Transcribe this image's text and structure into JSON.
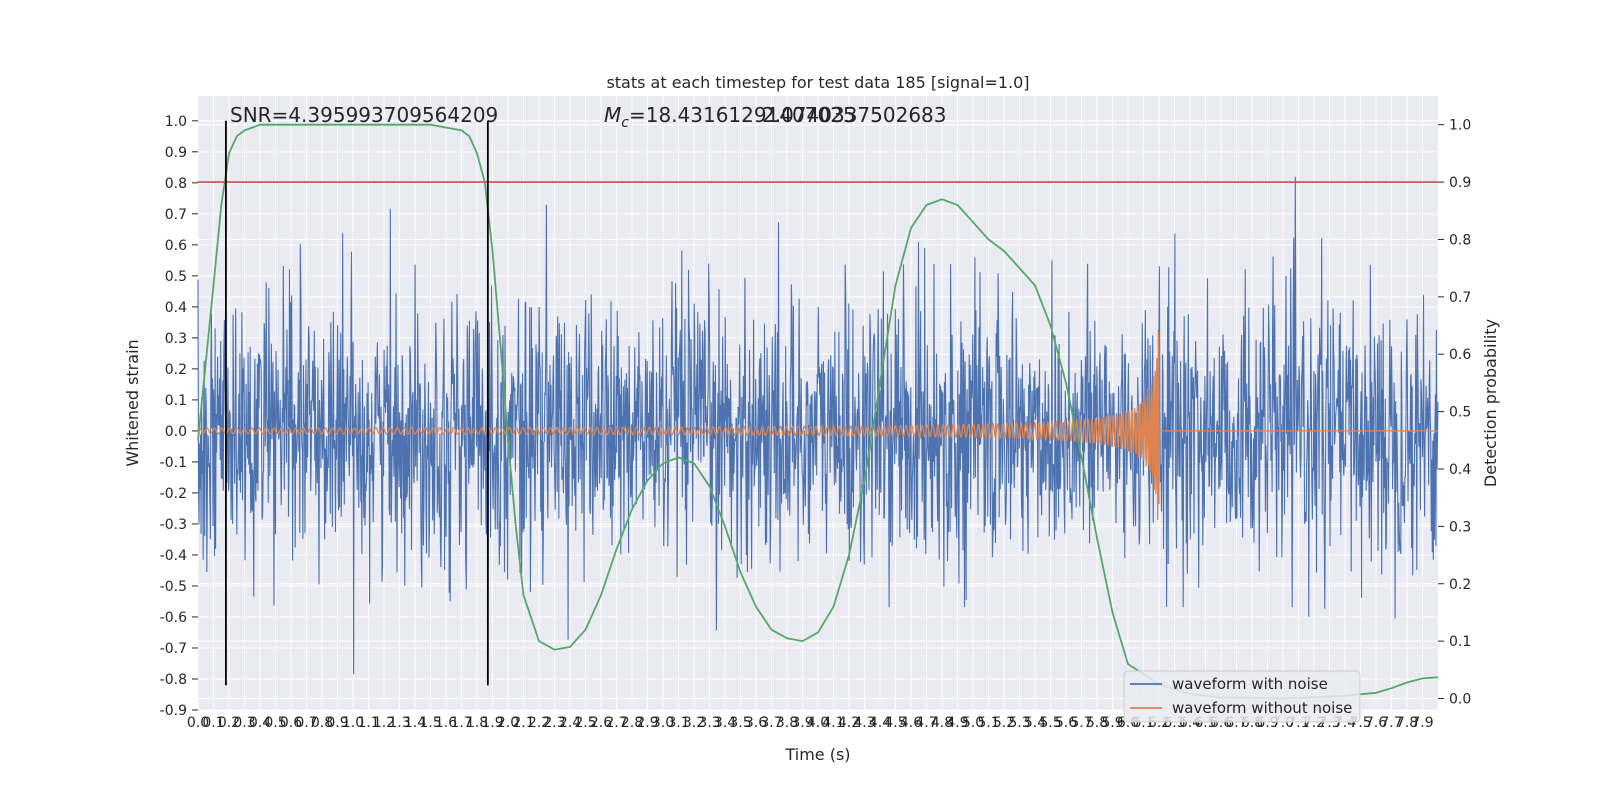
{
  "chart_data": {
    "type": "line",
    "title": "stats at each timestep for test data 185 [signal=1.0]",
    "xlabel": "Time (s)",
    "ylabel": "Whitened strain",
    "y2label": "Detection probability",
    "xlim": [
      0.0,
      8.0
    ],
    "ylim": [
      -0.9,
      1.08
    ],
    "y2lim": [
      -0.02,
      1.05
    ],
    "x_ticks": [
      0.0,
      0.1,
      0.2,
      0.3,
      0.4,
      0.5,
      0.6,
      0.7,
      0.8,
      0.9,
      1.0,
      1.1,
      1.2,
      1.3,
      1.4,
      1.5,
      1.6,
      1.7,
      1.8,
      1.9,
      2.0,
      2.1,
      2.2,
      2.3,
      2.4,
      2.5,
      2.6,
      2.7,
      2.8,
      2.9,
      3.0,
      3.1,
      3.2,
      3.3,
      3.4,
      3.5,
      3.6,
      3.7,
      3.8,
      3.9,
      4.0,
      4.1,
      4.2,
      4.3,
      4.4,
      4.5,
      4.6,
      4.7,
      4.8,
      4.9,
      5.0,
      5.1,
      5.2,
      5.3,
      5.4,
      5.5,
      5.6,
      5.7,
      5.8,
      5.9,
      6.0,
      6.1,
      6.2,
      6.3,
      6.4,
      6.5,
      6.6,
      6.7,
      6.8,
      6.9,
      7.0,
      7.1,
      7.2,
      7.3,
      7.4,
      7.5,
      7.6,
      7.7,
      7.8,
      7.9
    ],
    "y_ticks": [
      -0.9,
      -0.8,
      -0.7,
      -0.6,
      -0.5,
      -0.4,
      -0.3,
      -0.2,
      -0.1,
      0.0,
      0.1,
      0.2,
      0.3,
      0.4,
      0.5,
      0.6,
      0.7,
      0.8,
      0.9,
      1.0
    ],
    "y2_ticks": [
      0.0,
      0.1,
      0.2,
      0.3,
      0.4,
      0.5,
      0.6,
      0.7,
      0.8,
      0.9,
      1.0
    ],
    "grid": true,
    "legend_position": "lower-right",
    "series": [
      {
        "name": "waveform with noise",
        "color": "#4c72b0",
        "axis": "left",
        "noise_envelope": {
          "typical_max": 0.45,
          "typical_min": -0.45,
          "max": 1.0,
          "min": -0.82
        }
      },
      {
        "name": "waveform without noise",
        "color": "#dd8452",
        "axis": "left",
        "chirp": {
          "start": 0.0,
          "merger": 6.2,
          "early_amplitude": 0.004,
          "peak_amplitude": 0.38
        }
      },
      {
        "name": "",
        "color": "#55a868",
        "axis": "right",
        "x": [
          0.0,
          0.1,
          0.15,
          0.2,
          0.25,
          0.3,
          0.4,
          0.5,
          0.7,
          1.0,
          1.5,
          1.7,
          1.75,
          1.8,
          1.85,
          1.9,
          1.95,
          2.0,
          2.05,
          2.1,
          2.2,
          2.3,
          2.4,
          2.5,
          2.6,
          2.7,
          2.8,
          2.9,
          3.0,
          3.1,
          3.2,
          3.3,
          3.4,
          3.5,
          3.6,
          3.7,
          3.8,
          3.9,
          4.0,
          4.1,
          4.2,
          4.3,
          4.4,
          4.5,
          4.6,
          4.7,
          4.8,
          4.9,
          5.0,
          5.1,
          5.2,
          5.3,
          5.4,
          5.5,
          5.6,
          5.7,
          5.8,
          5.9,
          6.0,
          6.2,
          6.4,
          6.6,
          6.8,
          7.0,
          7.2,
          7.4,
          7.6,
          7.7,
          7.8,
          7.9,
          8.0
        ],
        "values": [
          0.45,
          0.72,
          0.86,
          0.95,
          0.98,
          0.99,
          1.0,
          1.0,
          1.0,
          1.0,
          1.0,
          0.99,
          0.98,
          0.95,
          0.9,
          0.78,
          0.62,
          0.45,
          0.3,
          0.18,
          0.1,
          0.085,
          0.09,
          0.12,
          0.18,
          0.26,
          0.33,
          0.38,
          0.41,
          0.42,
          0.41,
          0.37,
          0.3,
          0.22,
          0.16,
          0.12,
          0.105,
          0.1,
          0.115,
          0.16,
          0.25,
          0.38,
          0.55,
          0.72,
          0.82,
          0.86,
          0.87,
          0.86,
          0.83,
          0.8,
          0.78,
          0.75,
          0.72,
          0.65,
          0.55,
          0.42,
          0.28,
          0.15,
          0.06,
          0.025,
          0.008,
          0.002,
          0.001,
          0.0,
          0.002,
          0.005,
          0.01,
          0.018,
          0.028,
          0.035,
          0.037
        ]
      }
    ],
    "threshold_line": {
      "axis": "right",
      "value": 0.9,
      "color": "#c44e52"
    },
    "vertical_lines": [
      {
        "x": 0.18,
        "ymin": -0.82,
        "ymax": 1.0
      },
      {
        "x": 1.87,
        "ymin": -0.82,
        "ymax": 1.0
      }
    ],
    "annotations": {
      "snr": "SNR=4.395993709564209",
      "mc": "Mc=18.43161291407025083017349",
      "mc_symbol": "M",
      "mc_subscript": "c",
      "mc_value": "=18.43161291407025",
      "mc_overlap": "2.0740337502683"
    }
  }
}
